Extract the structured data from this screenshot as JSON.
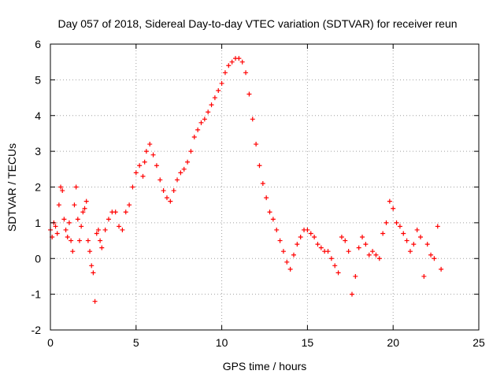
{
  "chart_data": {
    "type": "scatter",
    "title": "Day 057 of 2018, Sidereal Day-to-day VTEC variation (SDTVAR) for receiver reun",
    "xlabel": "GPS time / hours",
    "ylabel": "SDTVAR / TECUs",
    "xlim": [
      0,
      25
    ],
    "ylim": [
      -2,
      6
    ],
    "xticks": [
      0,
      5,
      10,
      15,
      20,
      25
    ],
    "yticks": [
      -2,
      -1,
      0,
      1,
      2,
      3,
      4,
      5,
      6
    ],
    "grid": true,
    "marker": "+",
    "marker_color": "#ff0000",
    "series": [
      {
        "name": "SDTVAR",
        "points": [
          [
            0.0,
            0.8
          ],
          [
            0.1,
            0.6
          ],
          [
            0.2,
            1.0
          ],
          [
            0.3,
            0.9
          ],
          [
            0.4,
            0.7
          ],
          [
            0.5,
            1.5
          ],
          [
            0.6,
            2.0
          ],
          [
            0.7,
            1.9
          ],
          [
            0.8,
            1.1
          ],
          [
            0.9,
            0.8
          ],
          [
            1.0,
            0.6
          ],
          [
            1.1,
            1.0
          ],
          [
            1.2,
            0.5
          ],
          [
            1.3,
            0.2
          ],
          [
            1.4,
            1.5
          ],
          [
            1.5,
            2.0
          ],
          [
            1.6,
            1.1
          ],
          [
            1.7,
            0.5
          ],
          [
            1.8,
            0.9
          ],
          [
            1.9,
            1.3
          ],
          [
            2.0,
            1.4
          ],
          [
            2.1,
            1.6
          ],
          [
            2.2,
            0.5
          ],
          [
            2.3,
            0.2
          ],
          [
            2.4,
            -0.2
          ],
          [
            2.5,
            -0.4
          ],
          [
            2.6,
            -1.2
          ],
          [
            2.7,
            0.7
          ],
          [
            2.8,
            0.8
          ],
          [
            2.9,
            0.5
          ],
          [
            3.0,
            0.3
          ],
          [
            3.2,
            0.8
          ],
          [
            3.4,
            1.1
          ],
          [
            3.6,
            1.3
          ],
          [
            3.8,
            1.3
          ],
          [
            4.0,
            0.9
          ],
          [
            4.2,
            0.8
          ],
          [
            4.4,
            1.3
          ],
          [
            4.6,
            1.5
          ],
          [
            4.8,
            2.0
          ],
          [
            5.0,
            2.4
          ],
          [
            5.2,
            2.6
          ],
          [
            5.4,
            2.3
          ],
          [
            5.5,
            2.7
          ],
          [
            5.6,
            3.0
          ],
          [
            5.8,
            3.2
          ],
          [
            6.0,
            2.9
          ],
          [
            6.2,
            2.6
          ],
          [
            6.4,
            2.2
          ],
          [
            6.6,
            1.9
          ],
          [
            6.8,
            1.7
          ],
          [
            7.0,
            1.6
          ],
          [
            7.2,
            1.9
          ],
          [
            7.4,
            2.2
          ],
          [
            7.6,
            2.4
          ],
          [
            7.8,
            2.5
          ],
          [
            8.0,
            2.7
          ],
          [
            8.2,
            3.0
          ],
          [
            8.4,
            3.4
          ],
          [
            8.6,
            3.6
          ],
          [
            8.8,
            3.8
          ],
          [
            9.0,
            3.9
          ],
          [
            9.2,
            4.1
          ],
          [
            9.4,
            4.3
          ],
          [
            9.6,
            4.5
          ],
          [
            9.8,
            4.7
          ],
          [
            10.0,
            4.9
          ],
          [
            10.2,
            5.2
          ],
          [
            10.4,
            5.4
          ],
          [
            10.6,
            5.5
          ],
          [
            10.8,
            5.6
          ],
          [
            11.0,
            5.6
          ],
          [
            11.2,
            5.5
          ],
          [
            11.4,
            5.2
          ],
          [
            11.6,
            4.6
          ],
          [
            11.8,
            3.9
          ],
          [
            12.0,
            3.2
          ],
          [
            12.2,
            2.6
          ],
          [
            12.4,
            2.1
          ],
          [
            12.6,
            1.7
          ],
          [
            12.8,
            1.3
          ],
          [
            13.0,
            1.1
          ],
          [
            13.2,
            0.8
          ],
          [
            13.4,
            0.5
          ],
          [
            13.6,
            0.2
          ],
          [
            13.8,
            -0.1
          ],
          [
            14.0,
            -0.3
          ],
          [
            14.2,
            0.1
          ],
          [
            14.4,
            0.4
          ],
          [
            14.6,
            0.6
          ],
          [
            14.8,
            0.8
          ],
          [
            15.0,
            0.8
          ],
          [
            15.2,
            0.7
          ],
          [
            15.4,
            0.6
          ],
          [
            15.6,
            0.4
          ],
          [
            15.8,
            0.3
          ],
          [
            16.0,
            0.2
          ],
          [
            16.2,
            0.2
          ],
          [
            16.4,
            0.0
          ],
          [
            16.6,
            -0.2
          ],
          [
            16.8,
            -0.4
          ],
          [
            17.0,
            0.6
          ],
          [
            17.2,
            0.5
          ],
          [
            17.4,
            0.2
          ],
          [
            17.6,
            -1.0
          ],
          [
            17.8,
            -0.5
          ],
          [
            18.0,
            0.3
          ],
          [
            18.2,
            0.6
          ],
          [
            18.4,
            0.4
          ],
          [
            18.6,
            0.1
          ],
          [
            18.8,
            0.2
          ],
          [
            19.0,
            0.1
          ],
          [
            19.2,
            0.0
          ],
          [
            19.4,
            0.7
          ],
          [
            19.6,
            1.0
          ],
          [
            19.8,
            1.6
          ],
          [
            20.0,
            1.4
          ],
          [
            20.2,
            1.0
          ],
          [
            20.4,
            0.9
          ],
          [
            20.6,
            0.7
          ],
          [
            20.8,
            0.5
          ],
          [
            21.0,
            0.2
          ],
          [
            21.2,
            0.4
          ],
          [
            21.4,
            0.8
          ],
          [
            21.6,
            0.6
          ],
          [
            21.8,
            -0.5
          ],
          [
            22.0,
            0.4
          ],
          [
            22.2,
            0.1
          ],
          [
            22.4,
            0.0
          ],
          [
            22.6,
            0.9
          ],
          [
            22.8,
            -0.3
          ]
        ]
      }
    ]
  }
}
